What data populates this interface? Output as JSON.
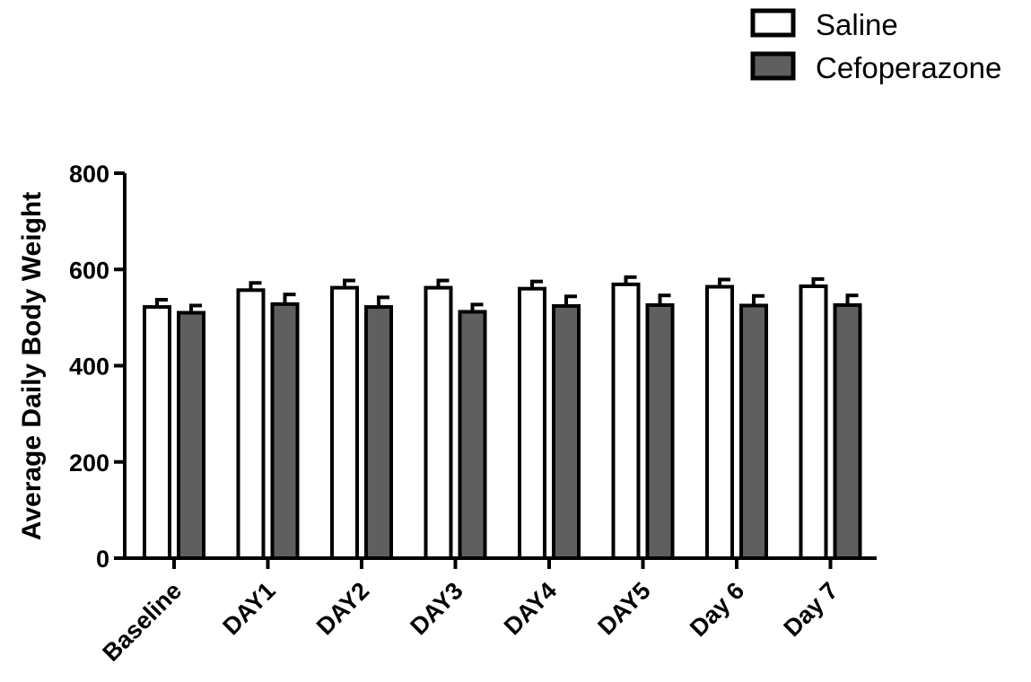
{
  "chart_data": {
    "type": "bar",
    "title": "",
    "xlabel": "",
    "ylabel": "Average Daily Body Weight",
    "ylim": [
      0,
      800
    ],
    "yticks": [
      0,
      200,
      400,
      600,
      800
    ],
    "categories": [
      "Baseline",
      "DAY1",
      "DAY2",
      "DAY3",
      "DAY4",
      "DAY5",
      "Day 6",
      "Day 7"
    ],
    "grid": false,
    "legend_position": "top-right",
    "series": [
      {
        "name": "Saline",
        "color": "#ffffff",
        "values": [
          522,
          557,
          562,
          562,
          560,
          569,
          564,
          565
        ],
        "error": [
          15,
          15,
          15,
          15,
          15,
          15,
          15,
          15
        ]
      },
      {
        "name": "Cefoperazone",
        "color": "#5f5f5f",
        "values": [
          510,
          528,
          522,
          512,
          524,
          526,
          525,
          526
        ],
        "error": [
          15,
          20,
          20,
          15,
          20,
          20,
          20,
          20
        ]
      }
    ]
  }
}
